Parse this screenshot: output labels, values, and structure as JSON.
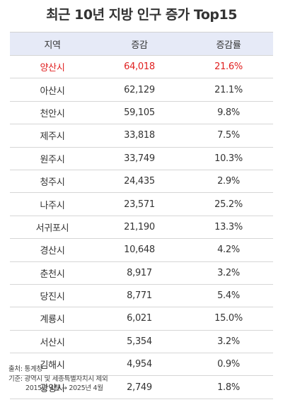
{
  "title": "최근 10년 지방 인구 증가 Top15",
  "table": {
    "headers": [
      "지역",
      "증감",
      "증감률"
    ],
    "rows": [
      {
        "region": "양산시",
        "change": "64,018",
        "rate": "21.6%"
      },
      {
        "region": "아산시",
        "change": "62,129",
        "rate": "21.1%"
      },
      {
        "region": "천안시",
        "change": "59,105",
        "rate": "9.8%"
      },
      {
        "region": "제주시",
        "change": "33,818",
        "rate": "7.5%"
      },
      {
        "region": "원주시",
        "change": "33,749",
        "rate": "10.3%"
      },
      {
        "region": "청주시",
        "change": "24,435",
        "rate": "2.9%"
      },
      {
        "region": "나주시",
        "change": "23,571",
        "rate": "25.2%"
      },
      {
        "region": "서귀포시",
        "change": "21,190",
        "rate": "13.3%"
      },
      {
        "region": "경산시",
        "change": "10,648",
        "rate": "4.2%"
      },
      {
        "region": "춘천시",
        "change": "8,917",
        "rate": "3.2%"
      },
      {
        "region": "당진시",
        "change": "8,771",
        "rate": "5.4%"
      },
      {
        "region": "계룡시",
        "change": "6,021",
        "rate": "15.0%"
      },
      {
        "region": "서산시",
        "change": "5,354",
        "rate": "3.2%"
      },
      {
        "region": "김해시",
        "change": "4,954",
        "rate": "0.9%"
      },
      {
        "region": "광양시",
        "change": "2,749",
        "rate": "1.8%"
      }
    ]
  },
  "footer": {
    "source": "출처: 통계청",
    "basis": "기준: 광역시 및 세종특별자치시 제외",
    "period": "2015년 4월 → 2025년 4월"
  },
  "colors": {
    "highlight": "#e02020",
    "header_bg": "#e6eaf7"
  }
}
